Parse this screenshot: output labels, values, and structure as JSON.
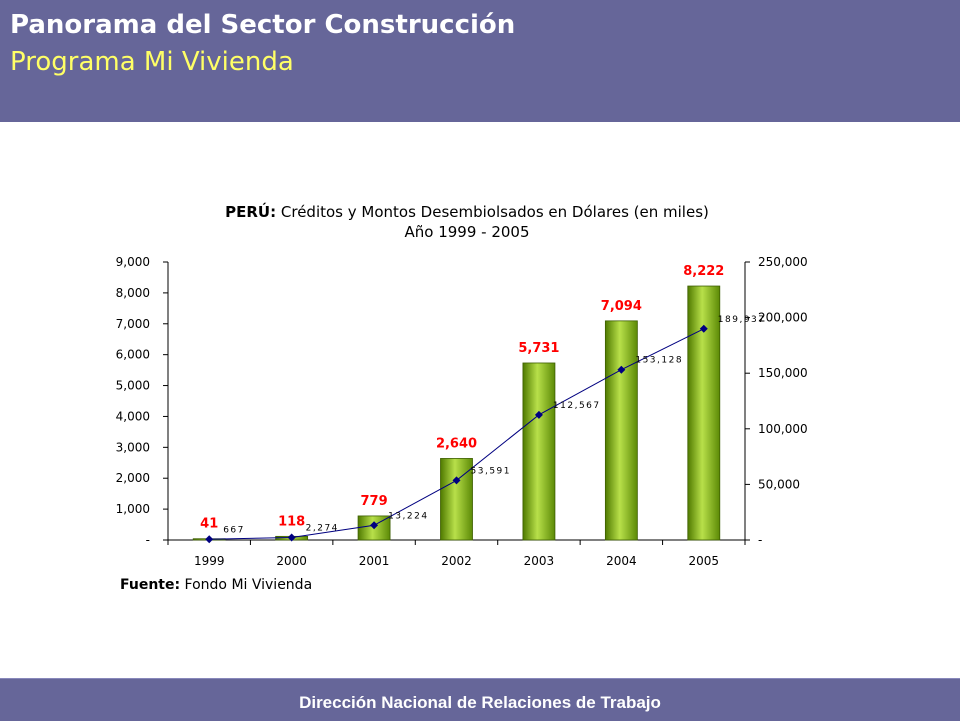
{
  "header": {
    "title": "Panorama del Sector Construcción",
    "subtitle": "Programa Mi Vivienda"
  },
  "footer": {
    "text": "Dirección Nacional de Relaciones de Trabajo"
  },
  "colors": {
    "header_bg": "#666699",
    "subtitle": "#ffff66",
    "bar": "#7fae12",
    "line": "#000080",
    "bar_label": "#ff0000"
  },
  "chart_data": {
    "type": "bar",
    "title_bold": "PERÚ:",
    "title_rest": "Créditos y Montos Desembiolsados en Dólares (en miles)",
    "title_line2": "Año 1999 - 2005",
    "categories": [
      "1999",
      "2000",
      "2001",
      "2002",
      "2003",
      "2004",
      "2005"
    ],
    "series": [
      {
        "values": [
          41,
          118,
          779,
          2640,
          5731,
          7094,
          8222
        ],
        "labels": [
          "41",
          "118",
          "779",
          "2,640",
          "5,731",
          "7,094",
          "8,222"
        ],
        "axis": "left",
        "kind": "bar"
      },
      {
        "values": [
          667,
          2274,
          13224,
          53591,
          112567,
          153128,
          189937
        ],
        "labels": [
          "667",
          "2,274",
          "13,224",
          "53,591",
          "112,567",
          "153,128",
          "189,937"
        ],
        "axis": "right",
        "kind": "line"
      }
    ],
    "y_left": {
      "ylim": [
        0,
        9000
      ],
      "ticks": [
        "-",
        "1,000",
        "2,000",
        "3,000",
        "4,000",
        "5,000",
        "6,000",
        "7,000",
        "8,000",
        "9,000"
      ]
    },
    "y_right": {
      "ylim": [
        0,
        250000
      ],
      "ticks": [
        "-",
        "50,000",
        "100,000",
        "150,000",
        "200,000",
        "250,000"
      ]
    },
    "source_bold": "Fuente:",
    "source_rest": "Fondo Mi Vivienda",
    "grid": false,
    "legend": "none"
  }
}
